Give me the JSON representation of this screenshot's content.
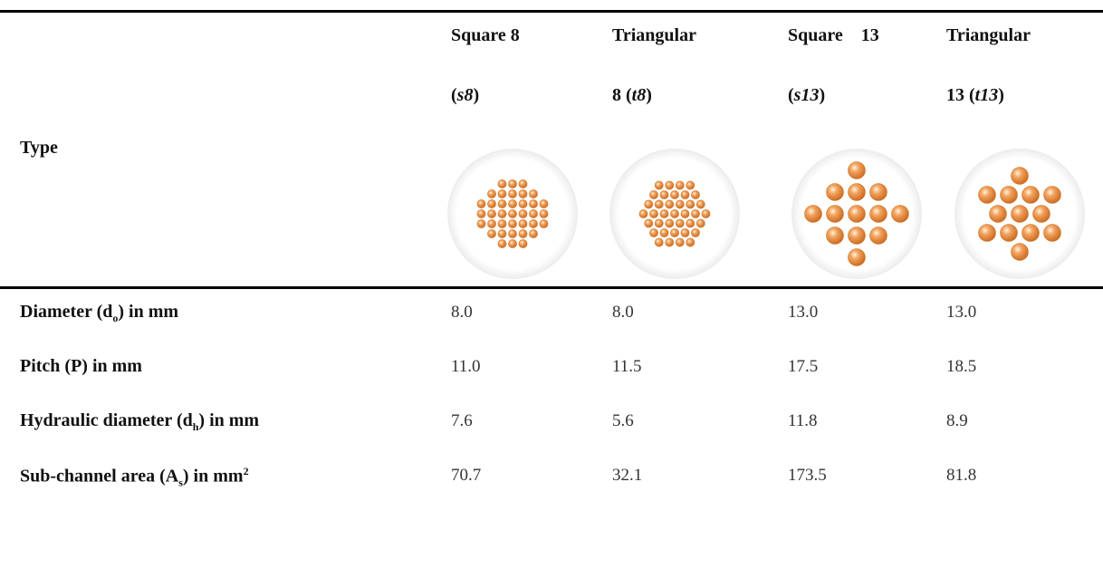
{
  "table": {
    "type_label": "Type",
    "columns": [
      {
        "top": "Square 8",
        "pre": "(",
        "code": "s8",
        "post": ")"
      },
      {
        "top": "Triangular",
        "pre": "8 (",
        "code": "t8",
        "post": ")"
      },
      {
        "top": "Square    13",
        "pre": "(",
        "code": "s13",
        "post": ")"
      },
      {
        "top": "Triangular",
        "pre": "13 (",
        "code": "t13",
        "post": ")"
      }
    ],
    "rows": [
      {
        "label": {
          "text": "Diameter (d",
          "sub": "o",
          "after": ") in mm"
        },
        "values": [
          "8.0",
          "8.0",
          "13.0",
          "13.0"
        ]
      },
      {
        "label": {
          "text": "Pitch (P) in mm"
        },
        "values": [
          "11.0",
          "11.5",
          "17.5",
          "18.5"
        ]
      },
      {
        "label": {
          "text": "Hydraulic diameter (d",
          "sub": "h",
          "after": ") in mm"
        },
        "values": [
          "7.6",
          "5.6",
          "11.8",
          "8.9"
        ]
      },
      {
        "label": {
          "text": "Sub-channel area (A",
          "sub": "s",
          "after": ") in mm",
          "sup": "2"
        },
        "values": [
          "70.7",
          "32.1",
          "173.5",
          "81.8"
        ]
      }
    ]
  }
}
